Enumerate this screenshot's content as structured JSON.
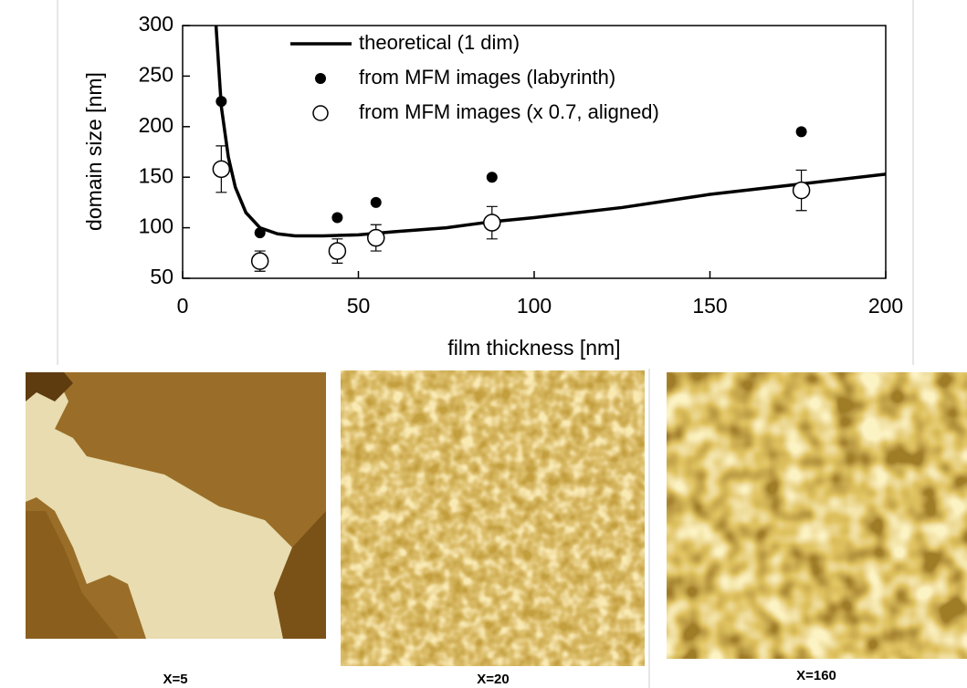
{
  "chart_data": {
    "type": "scatter",
    "xlabel": "film thickness [nm]",
    "ylabel": "domain size [nm]",
    "xlim": [
      0,
      200
    ],
    "xticks": [
      0,
      50,
      100,
      150,
      200
    ],
    "ylim": [
      50,
      300
    ],
    "yticks": [
      50,
      100,
      150,
      200,
      250,
      300
    ],
    "series": [
      {
        "name": "theoretical (1 dim)",
        "style": "line",
        "color": "#000000",
        "x": [
          9.5,
          11,
          13,
          15,
          18,
          22,
          27,
          32,
          40,
          50,
          60,
          75,
          88,
          100,
          125,
          150,
          175,
          200
        ],
        "values": [
          300,
          220,
          170,
          140,
          115,
          100,
          94,
          92,
          92,
          93,
          96,
          100,
          106,
          110,
          120,
          133,
          143,
          153
        ]
      },
      {
        "name": "from MFM images (labyrinth)",
        "style": "filled",
        "color": "#000000",
        "x": [
          11,
          22,
          44,
          55,
          88,
          176
        ],
        "values": [
          225,
          95,
          110,
          125,
          150,
          195
        ]
      },
      {
        "name": "from MFM images (x 0.7, aligned)",
        "style": "open",
        "color": "#000000",
        "x": [
          11,
          22,
          44,
          55,
          88,
          176
        ],
        "values": [
          158,
          67,
          77,
          90,
          105,
          137
        ],
        "errors": [
          23,
          10,
          12,
          13,
          16,
          20
        ]
      }
    ]
  },
  "images": [
    {
      "label": "X=5"
    },
    {
      "label": "X=20"
    },
    {
      "label": "X=160"
    }
  ]
}
